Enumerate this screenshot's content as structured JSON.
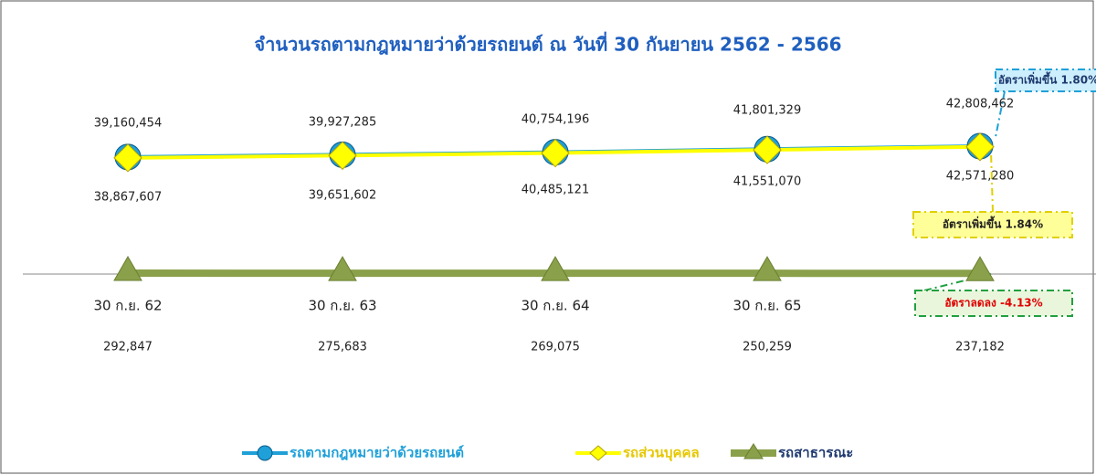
{
  "chart_data": {
    "type": "line",
    "title": "จำนวนรถตามกฎหมายว่าด้วยรถยนต์  ณ  วันที่ 30 กันยายน 2562 - 2566",
    "categories": [
      "30 ก.ย. 62",
      "30 ก.ย. 63",
      "30 ก.ย. 64",
      "30 ก.ย. 65",
      "30 ก.ย. 66"
    ],
    "ylim": [
      0,
      70000000
    ],
    "grid": false,
    "series": [
      {
        "name": "รถตามกฎหมายว่าด้วยรถยนต์",
        "color": "#1fa0d8",
        "values": [
          39160454,
          39927285,
          40754196,
          41801329,
          42808462
        ],
        "value_labels": [
          "39,160,454",
          "39,927,285",
          "40,754,196",
          "41,801,329",
          "42,808,462"
        ]
      },
      {
        "name": "รถส่วนบุคคล",
        "color": "#ffff00",
        "values": [
          38867607,
          39651602,
          40485121,
          41551070,
          42571280
        ],
        "value_labels": [
          "38,867,607",
          "39,651,602",
          "40,485,121",
          "41,551,070",
          "42,571,280"
        ]
      },
      {
        "name": "รถสาธารณะ",
        "color": "#8aa04a",
        "values": [
          292847,
          275683,
          269075,
          250259,
          237182
        ],
        "value_labels": [
          "292,847",
          "275,683",
          "269,075",
          "250,259",
          "237,182"
        ]
      }
    ],
    "annotations": [
      "อัตราเพิ่มขึ้น  1.80%",
      "อัตราเพิ่มขึ้น  1.84%",
      "อัตราลดลง  -4.13%"
    ]
  }
}
